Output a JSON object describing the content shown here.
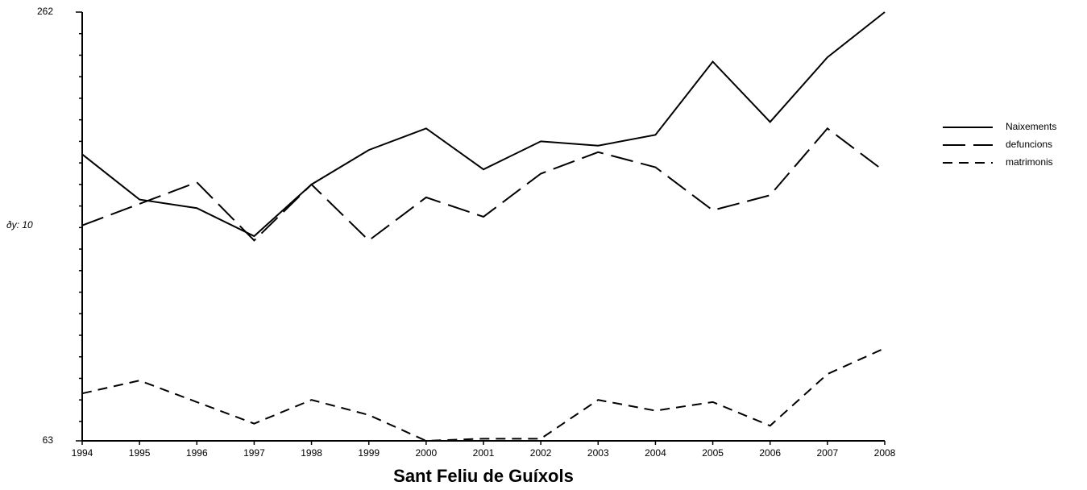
{
  "chart_data": {
    "type": "line",
    "title": "Sant Feliu de Guíxols",
    "annotation": "ðy: 10",
    "categories": [
      "1994",
      "1995",
      "1996",
      "1997",
      "1998",
      "1999",
      "2000",
      "2001",
      "2002",
      "2003",
      "2004",
      "2005",
      "2006",
      "2007",
      "2008"
    ],
    "series": [
      {
        "name": "Naixements",
        "color": "#000000",
        "dash": "solid",
        "values": [
          196,
          175,
          171,
          158,
          182,
          198,
          208,
          189,
          202,
          200,
          205,
          239,
          211,
          241,
          262
        ]
      },
      {
        "name": "defuncions",
        "color": "#000000",
        "dash": "long",
        "values": [
          163,
          173,
          183,
          156,
          182,
          156,
          176,
          167,
          187,
          197,
          190,
          170,
          177,
          208,
          188
        ]
      },
      {
        "name": "matrimonis",
        "color": "#000000",
        "dash": "short",
        "values": [
          85,
          91,
          81,
          71,
          82,
          75,
          63,
          64,
          64,
          82,
          77,
          81,
          70,
          94,
          106
        ]
      }
    ],
    "ylim": [
      63,
      262
    ],
    "yticks": [
      63,
      262
    ],
    "minor_yticks": [
      72,
      82,
      92,
      102,
      112,
      122,
      132,
      142,
      152,
      162,
      172,
      182,
      192,
      202,
      212,
      222,
      232,
      242,
      252
    ],
    "legend": "right"
  }
}
